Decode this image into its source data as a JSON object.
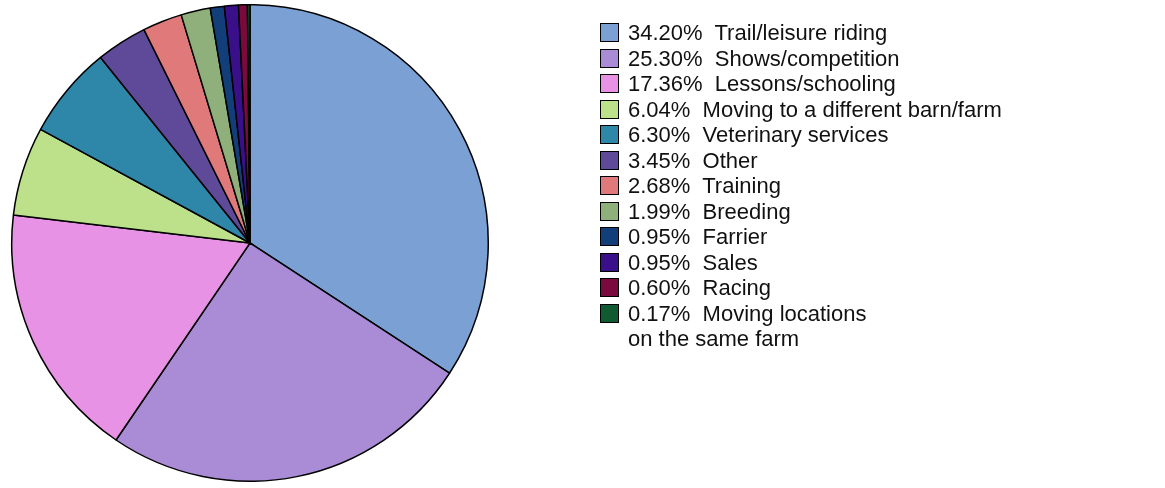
{
  "chart_data": {
    "type": "pie",
    "categories": [
      "Trail/leisure riding",
      "Shows/competition",
      "Lessons/schooling",
      "Moving to a different barn/farm",
      "Veterinary services",
      "Other",
      "Training",
      "Breeding",
      "Farrier",
      "Sales",
      "Racing",
      "Moving locations on the same farm"
    ],
    "values": [
      34.2,
      25.3,
      17.36,
      6.04,
      6.3,
      3.45,
      2.68,
      1.99,
      0.95,
      0.95,
      0.6,
      0.17
    ],
    "value_labels": [
      "34.20%",
      "25.30%",
      "17.36%",
      "6.04%",
      "6.30%",
      "3.45%",
      "2.68%",
      "1.99%",
      "0.95%",
      "0.95%",
      "0.60%",
      "0.17%"
    ],
    "colors": [
      "#7ba0d4",
      "#a98bd6",
      "#e892e6",
      "#bde08a",
      "#2e86a8",
      "#5e4a99",
      "#e07a7a",
      "#8fb07a",
      "#123f7a",
      "#3a0f8a",
      "#7a0a3e",
      "#0f5a30"
    ],
    "legend": "right"
  }
}
